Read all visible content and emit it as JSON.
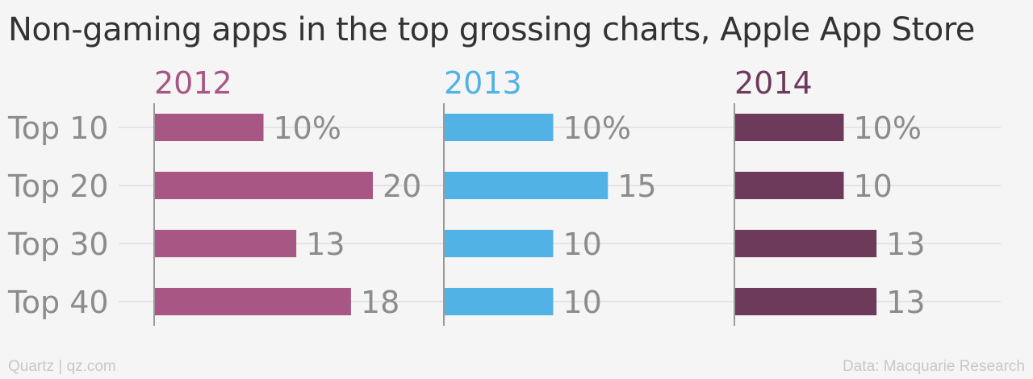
{
  "title": "Non-gaming apps in the top grossing charts, Apple App Store",
  "footer": {
    "source_left": "Quartz | qz.com",
    "source_right": "Data: Macquarie Research"
  },
  "chart_data": {
    "type": "bar",
    "orientation": "horizontal",
    "layout": "small-multiples",
    "title": "Non-gaming apps in the top grossing charts, Apple App Store",
    "categories": [
      "Top 10",
      "Top 20",
      "Top 30",
      "Top 40"
    ],
    "unit": "%",
    "grid": true,
    "series": [
      {
        "name": "2012",
        "color": "#a85684",
        "values": [
          10,
          20,
          13,
          18
        ],
        "labels": [
          "10%",
          "20",
          "13",
          "18"
        ]
      },
      {
        "name": "2013",
        "color": "#51b2e5",
        "values": [
          10,
          15,
          10,
          10
        ],
        "labels": [
          "10%",
          "15",
          "10",
          "10"
        ]
      },
      {
        "name": "2014",
        "color": "#6e3a5b",
        "values": [
          10,
          10,
          13,
          13
        ],
        "labels": [
          "10%",
          "10",
          "13",
          "13"
        ]
      }
    ]
  }
}
